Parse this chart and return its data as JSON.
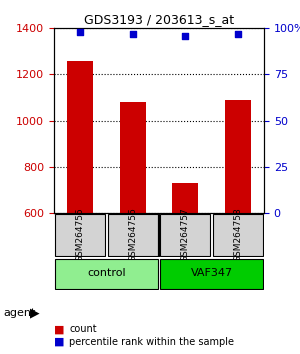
{
  "title": "GDS3193 / 203613_s_at",
  "samples": [
    "GSM264755",
    "GSM264756",
    "GSM264757",
    "GSM264758"
  ],
  "counts": [
    1260,
    1080,
    730,
    1090
  ],
  "percentile_ranks": [
    98,
    97,
    96,
    97
  ],
  "ylim_left": [
    600,
    1400
  ],
  "ylim_right": [
    0,
    100
  ],
  "yticks_left": [
    600,
    800,
    1000,
    1200,
    1400
  ],
  "yticks_right": [
    0,
    25,
    50,
    75,
    100
  ],
  "ytick_labels_right": [
    "0",
    "25",
    "50",
    "75",
    "100%"
  ],
  "bar_color": "#cc0000",
  "dot_color": "#0000cc",
  "groups": [
    {
      "label": "control",
      "indices": [
        0,
        1
      ],
      "color": "#90ee90"
    },
    {
      "label": "VAF347",
      "indices": [
        2,
        3
      ],
      "color": "#00cc00"
    }
  ],
  "agent_label": "agent",
  "legend_count_label": "count",
  "legend_percentile_label": "percentile rank within the sample",
  "grid_color": "#000000",
  "background_color": "#ffffff",
  "bar_bottom": 600
}
